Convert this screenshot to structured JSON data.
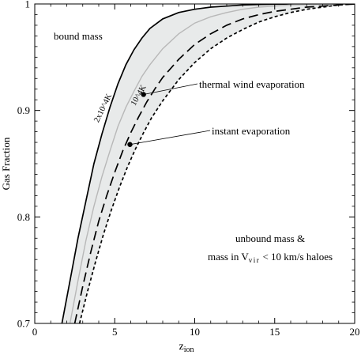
{
  "chart_data": {
    "type": "line",
    "xlabel": "z",
    "xlabel_sub": "ion",
    "ylabel": "Gas Fraction",
    "xlim": [
      0,
      20
    ],
    "ylim": [
      0.7,
      1.0
    ],
    "xticks": [
      0,
      5,
      10,
      15,
      20
    ],
    "xtick_labels": [
      "0",
      "5",
      "10",
      "15",
      "20"
    ],
    "yticks": [
      0.7,
      0.8,
      0.9,
      1.0
    ],
    "ytick_labels": [
      "0.7",
      "0.8",
      "0.9",
      "1"
    ],
    "series": [
      {
        "name": "2x10^4 K",
        "style": "solid",
        "color": "#000000",
        "x": [
          1.7,
          2.2,
          2.7,
          3.2,
          3.7,
          4.2,
          4.7,
          5.2,
          5.7,
          6.2,
          6.7,
          7.2,
          8.0,
          9.0,
          10.0,
          11.0,
          12.0,
          13.0,
          14.0,
          15.0,
          16.0,
          18.0,
          20.0
        ],
        "y": [
          0.7,
          0.74,
          0.78,
          0.815,
          0.85,
          0.878,
          0.903,
          0.925,
          0.943,
          0.957,
          0.968,
          0.977,
          0.986,
          0.992,
          0.995,
          0.997,
          0.998,
          0.999,
          0.9995,
          0.9998,
          1.0,
          1.0,
          1.0
        ]
      },
      {
        "name": "10^4 K",
        "style": "solid",
        "color": "#b8b8b8",
        "x": [
          2.2,
          2.7,
          3.2,
          3.7,
          4.2,
          4.7,
          5.2,
          5.7,
          6.2,
          6.7,
          7.2,
          8.0,
          9.0,
          10.0,
          11.0,
          12.0,
          13.0,
          14.0,
          15.0,
          16.0,
          18.0,
          20.0
        ],
        "y": [
          0.7,
          0.74,
          0.778,
          0.81,
          0.838,
          0.862,
          0.885,
          0.903,
          0.918,
          0.932,
          0.943,
          0.958,
          0.972,
          0.982,
          0.988,
          0.992,
          0.995,
          0.997,
          0.998,
          0.999,
          0.9997,
          1.0
        ]
      },
      {
        "name": "thermal wind evaporation",
        "style": "dashed",
        "color": "#000000",
        "x": [
          2.5,
          3.0,
          3.5,
          4.0,
          4.5,
          5.0,
          5.5,
          6.0,
          6.5,
          7.0,
          7.5,
          8.0,
          9.0,
          10.0,
          11.0,
          12.0,
          13.0,
          14.0,
          15.0,
          16.0,
          17.0,
          18.0,
          19.0,
          20.0
        ],
        "y": [
          0.7,
          0.735,
          0.767,
          0.796,
          0.82,
          0.842,
          0.862,
          0.879,
          0.894,
          0.908,
          0.92,
          0.931,
          0.948,
          0.962,
          0.972,
          0.98,
          0.986,
          0.99,
          0.993,
          0.995,
          0.997,
          0.998,
          0.999,
          1.0
        ]
      },
      {
        "name": "instant evaporation",
        "style": "dotted",
        "color": "#000000",
        "x": [
          2.8,
          3.3,
          3.8,
          4.3,
          4.8,
          5.3,
          5.8,
          6.3,
          6.8,
          7.3,
          8.0,
          9.0,
          10.0,
          11.0,
          12.0,
          13.0,
          14.0,
          15.0,
          16.0,
          17.0,
          18.0,
          19.0,
          20.0
        ],
        "y": [
          0.7,
          0.73,
          0.758,
          0.784,
          0.807,
          0.828,
          0.847,
          0.864,
          0.879,
          0.893,
          0.909,
          0.929,
          0.945,
          0.958,
          0.968,
          0.976,
          0.983,
          0.988,
          0.992,
          0.995,
          0.997,
          0.999,
          1.0
        ]
      }
    ],
    "band": {
      "between": [
        "2x10^4 K",
        "instant evaporation"
      ],
      "color": "#e8eaea"
    },
    "curve_labels": [
      {
        "text": "2x10^4K",
        "series": "2x10^4 K"
      },
      {
        "text": "10^4K",
        "series": "10^4 K"
      }
    ],
    "markers": [
      {
        "series": "thermal wind evaporation",
        "x": 6.8,
        "y": 0.915
      },
      {
        "series": "instant evaporation",
        "x": 5.95,
        "y": 0.868
      }
    ],
    "annotations": [
      {
        "text": "bound mass"
      },
      {
        "text": "thermal wind evaporation"
      },
      {
        "text": "instant evaporation"
      },
      {
        "text": "unbound mass &"
      },
      {
        "text_prefix": "mass in V",
        "text_sub": "vir",
        "text_suffix": " < 10 km/s haloes"
      }
    ]
  }
}
